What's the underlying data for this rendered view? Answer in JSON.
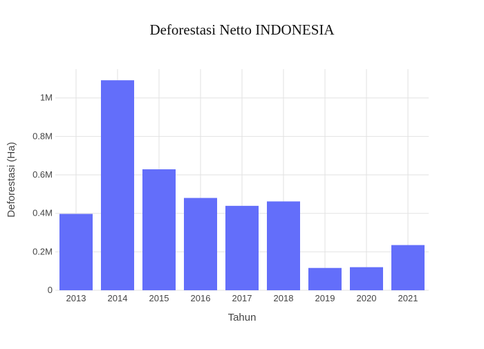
{
  "chart_data": {
    "type": "bar",
    "title": "Deforestasi Netto INDONESIA",
    "xlabel": "Tahun",
    "ylabel": "Deforestasi (Ha)",
    "categories": [
      "2013",
      "2014",
      "2015",
      "2016",
      "2017",
      "2018",
      "2019",
      "2020",
      "2021"
    ],
    "values": [
      397000,
      1092000,
      629000,
      480000,
      439000,
      462000,
      116000,
      120000,
      235000
    ],
    "ylim": [
      0,
      1150000
    ],
    "yticks": [
      0,
      200000,
      400000,
      600000,
      800000,
      1000000
    ],
    "ytick_labels": [
      "0",
      "0.2M",
      "0.4M",
      "0.6M",
      "0.8M",
      "1M"
    ],
    "grid": true,
    "bar_color": "#636efa"
  }
}
